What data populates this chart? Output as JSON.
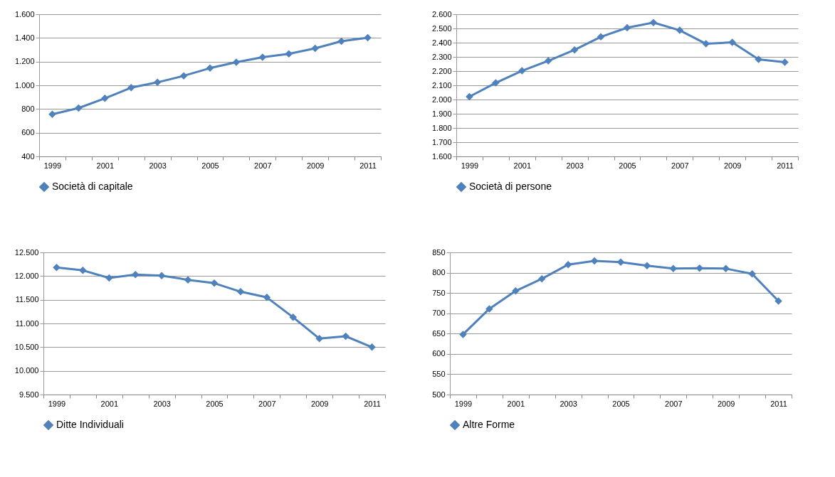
{
  "chart_data": [
    {
      "type": "line",
      "categories": [
        "1999",
        null,
        "2001",
        null,
        "2003",
        null,
        "2005",
        null,
        "2007",
        null,
        "2009",
        null,
        "2011"
      ],
      "series": [
        {
          "name": "Società di capitale",
          "color": "#4f81bd",
          "values": [
            755,
            808,
            890,
            980,
            1025,
            1080,
            1145,
            1195,
            1237,
            1265,
            1312,
            1372,
            1402
          ]
        }
      ],
      "ylim": [
        400,
        1600
      ],
      "yticks": [
        {
          "value": 400,
          "label": "400"
        },
        {
          "value": 600,
          "label": "600"
        },
        {
          "value": 800,
          "label": "800"
        },
        {
          "value": 1000,
          "label": "1.000"
        },
        {
          "value": 1200,
          "label": "1.200"
        },
        {
          "value": 1400,
          "label": "1.400"
        },
        {
          "value": 1600,
          "label": "1.600"
        }
      ],
      "grid": "y",
      "legend": "bottom",
      "marker": "diamond",
      "line_style": "solid"
    },
    {
      "type": "line",
      "categories": [
        "1999",
        null,
        "2001",
        null,
        "2003",
        null,
        "2005",
        null,
        "2007",
        null,
        "2009",
        null,
        "2011"
      ],
      "series": [
        {
          "name": "Società di persone",
          "color": "#4f81bd",
          "values": [
            2020,
            2117,
            2202,
            2272,
            2349,
            2441,
            2505,
            2541,
            2487,
            2392,
            2402,
            2282,
            2262
          ]
        }
      ],
      "ylim": [
        1600,
        2600
      ],
      "yticks": [
        {
          "value": 1600,
          "label": "1.600"
        },
        {
          "value": 1700,
          "label": "1.700"
        },
        {
          "value": 1800,
          "label": "1.800"
        },
        {
          "value": 1900,
          "label": "1.900"
        },
        {
          "value": 2000,
          "label": "2.000"
        },
        {
          "value": 2100,
          "label": "2.100"
        },
        {
          "value": 2200,
          "label": "2.200"
        },
        {
          "value": 2300,
          "label": "2.300"
        },
        {
          "value": 2400,
          "label": "2.400"
        },
        {
          "value": 2500,
          "label": "2.500"
        },
        {
          "value": 2600,
          "label": "2.600"
        }
      ],
      "grid": "y",
      "legend": "bottom",
      "marker": "diamond",
      "line_style": "solid"
    },
    {
      "type": "line",
      "categories": [
        "1999",
        null,
        "2001",
        null,
        "2003",
        null,
        "2005",
        null,
        "2007",
        null,
        "2009",
        null,
        "2011"
      ],
      "series": [
        {
          "name": "Ditte Individuali",
          "color": "#4f81bd",
          "values": [
            12180,
            12120,
            11960,
            12030,
            12010,
            11920,
            11850,
            11670,
            11550,
            11130,
            10680,
            10730,
            10500
          ]
        }
      ],
      "ylim": [
        9500,
        12500
      ],
      "yticks": [
        {
          "value": 9500,
          "label": "9.500"
        },
        {
          "value": 10000,
          "label": "10.000"
        },
        {
          "value": 10500,
          "label": "10.500"
        },
        {
          "value": 11000,
          "label": "11.000"
        },
        {
          "value": 11500,
          "label": "11.500"
        },
        {
          "value": 12000,
          "label": "12.000"
        },
        {
          "value": 12500,
          "label": "12.500"
        }
      ],
      "grid": "y",
      "legend": "bottom",
      "marker": "diamond",
      "line_style": "solid"
    },
    {
      "type": "line",
      "categories": [
        "1999",
        null,
        "2001",
        null,
        "2003",
        null,
        "2005",
        null,
        "2007",
        null,
        "2009",
        null,
        "2011"
      ],
      "series": [
        {
          "name": "Altre Forme",
          "color": "#4f81bd",
          "values": [
            648,
            711,
            755,
            785,
            820,
            829,
            826,
            817,
            810,
            811,
            810,
            797,
            730
          ]
        }
      ],
      "ylim": [
        500,
        850
      ],
      "yticks": [
        500,
        550,
        600,
        650,
        700,
        750,
        800,
        850
      ],
      "grid": "y",
      "legend": "bottom",
      "marker": "diamond",
      "line_style": "solid"
    }
  ]
}
